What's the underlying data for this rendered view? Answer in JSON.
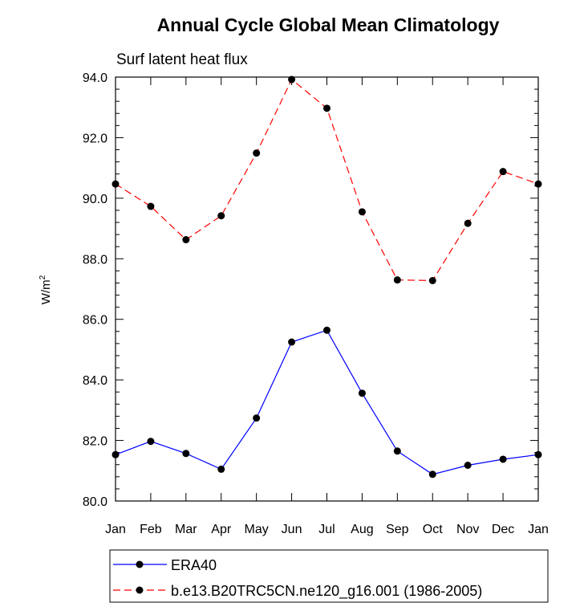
{
  "chart_data": {
    "type": "line",
    "title": "Annual Cycle Global Mean Climatology",
    "subtitle": "Surf latent heat flux",
    "xlabel": "",
    "ylabel": "W/m",
    "ylabel_superscript": "2",
    "ylim": [
      80.0,
      94.0
    ],
    "y_ticks": [
      "80.0",
      "82.0",
      "84.0",
      "86.0",
      "88.0",
      "90.0",
      "92.0",
      "94.0"
    ],
    "categories": [
      "Jan",
      "Feb",
      "Mar",
      "Apr",
      "May",
      "Jun",
      "Jul",
      "Aug",
      "Sep",
      "Oct",
      "Nov",
      "Dec",
      "Jan"
    ],
    "series": [
      {
        "name": "ERA40",
        "color": "#0000ff",
        "style": "solid",
        "values": [
          81.53,
          81.97,
          81.57,
          81.05,
          82.74,
          85.25,
          85.64,
          83.56,
          81.65,
          80.88,
          81.18,
          81.38,
          81.53
        ]
      },
      {
        "name": "b.e13.B20TRC5CN.ne120_g16.001 (1986-2005)",
        "color": "#ff0000",
        "style": "dashed",
        "values": [
          90.47,
          89.73,
          88.63,
          89.42,
          91.49,
          93.92,
          92.97,
          89.55,
          87.3,
          87.28,
          89.17,
          90.88,
          90.47
        ]
      }
    ]
  }
}
